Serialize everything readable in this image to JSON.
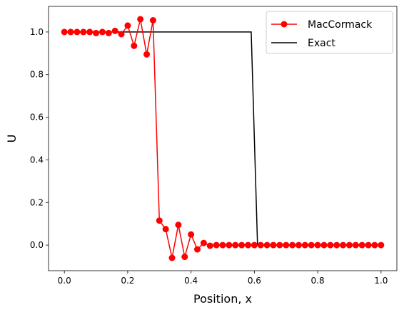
{
  "chart_data": {
    "type": "line",
    "xlabel": "Position, x",
    "ylabel": "U",
    "xlim": [
      -0.05,
      1.05
    ],
    "ylim": [
      -0.12,
      1.12
    ],
    "x_ticks": [
      0.0,
      0.2,
      0.4,
      0.6,
      0.8,
      1.0
    ],
    "x_tick_labels": [
      "0.0",
      "0.2",
      "0.4",
      "0.6",
      "0.8",
      "1.0"
    ],
    "y_ticks": [
      0.0,
      0.2,
      0.4,
      0.6,
      0.8,
      1.0
    ],
    "y_tick_labels": [
      "0.0",
      "0.2",
      "0.4",
      "0.6",
      "0.8",
      "1.0"
    ],
    "grid": false,
    "legend_position": "top-right",
    "series": [
      {
        "name": "MacCormack",
        "color": "#ff0000",
        "marker": "circle",
        "x": [
          0.0,
          0.02,
          0.04,
          0.06,
          0.08,
          0.1,
          0.12,
          0.14,
          0.16,
          0.18,
          0.2,
          0.22,
          0.24,
          0.26,
          0.28,
          0.3,
          0.32,
          0.34,
          0.36,
          0.38,
          0.4,
          0.42,
          0.44,
          0.46,
          0.48,
          0.5,
          0.52,
          0.54,
          0.56,
          0.58,
          0.6,
          0.62,
          0.64,
          0.66,
          0.68,
          0.7,
          0.72,
          0.74,
          0.76,
          0.78,
          0.8,
          0.82,
          0.84,
          0.86,
          0.88,
          0.9,
          0.92,
          0.94,
          0.96,
          0.98,
          1.0
        ],
        "y": [
          1.0,
          1.0,
          1.0,
          1.0,
          1.0,
          0.995,
          1.0,
          0.995,
          1.005,
          0.99,
          1.03,
          0.935,
          1.06,
          0.895,
          1.055,
          0.115,
          0.075,
          -0.06,
          0.095,
          -0.055,
          0.05,
          -0.02,
          0.01,
          -0.003,
          0.0,
          0.0,
          0.0,
          0.0,
          0.0,
          0.0,
          0.0,
          0.0,
          0.0,
          0.0,
          0.0,
          0.0,
          0.0,
          0.0,
          0.0,
          0.0,
          0.0,
          0.0,
          0.0,
          0.0,
          0.0,
          0.0,
          0.0,
          0.0,
          0.0,
          0.0,
          0.0
        ]
      },
      {
        "name": "Exact",
        "color": "#000000",
        "marker": "none",
        "x": [
          0.0,
          0.59,
          0.61,
          1.0
        ],
        "y": [
          1.0,
          1.0,
          0.0,
          0.0
        ]
      }
    ]
  }
}
